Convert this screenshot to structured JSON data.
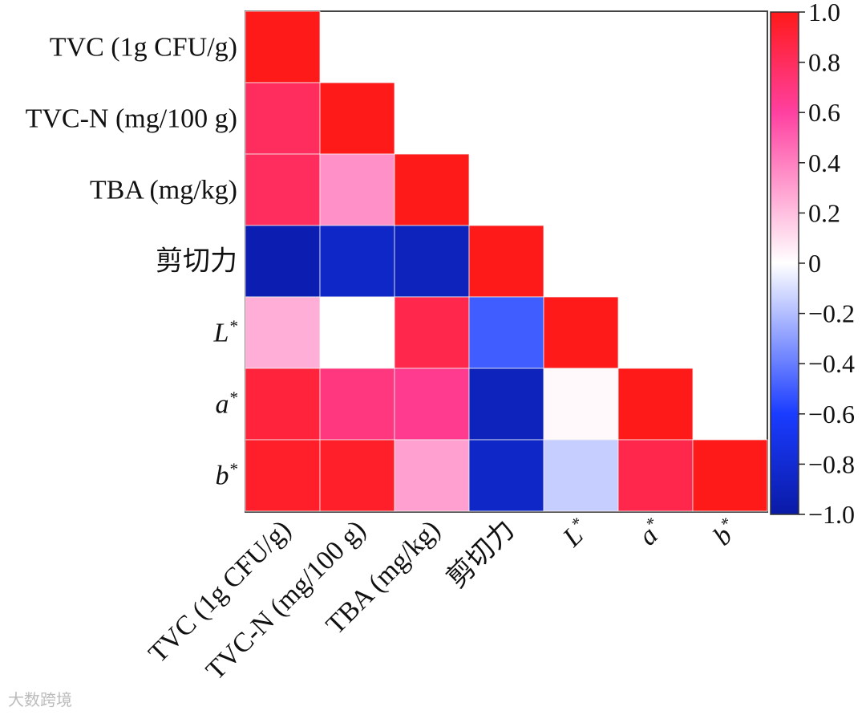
{
  "chart_data": {
    "type": "heatmap",
    "variables": [
      {
        "label": "TVC (1g CFU/g)",
        "base": "TVC (1g CFU/g)",
        "sup": "",
        "italic": false
      },
      {
        "label": "TVC-N (mg/100 g)",
        "base": "TVC-N (mg/100 g)",
        "sup": "",
        "italic": false
      },
      {
        "label": "TBA (mg/kg)",
        "base": "TBA (mg/kg)",
        "sup": "",
        "italic": false
      },
      {
        "label": "剪切力",
        "base": "剪切力",
        "sup": "",
        "italic": false
      },
      {
        "label": "L*",
        "base": "L",
        "sup": "*",
        "italic": true
      },
      {
        "label": "a*",
        "base": "a",
        "sup": "*",
        "italic": true
      },
      {
        "label": "b*",
        "base": "b",
        "sup": "*",
        "italic": true
      }
    ],
    "matrix": [
      [
        1.0
      ],
      [
        0.8,
        1.0
      ],
      [
        0.8,
        0.35,
        1.0
      ],
      [
        -0.95,
        -0.85,
        -0.9,
        1.0
      ],
      [
        0.25,
        0.0,
        0.85,
        -0.5,
        1.0
      ],
      [
        0.9,
        0.7,
        0.65,
        -0.9,
        0.02,
        1.0
      ],
      [
        0.95,
        0.95,
        0.3,
        -0.85,
        -0.15,
        0.85,
        1.0
      ]
    ],
    "triangle": "lower",
    "colorbar": {
      "range": [
        -1.0,
        1.0
      ],
      "ticks": [
        "1.0",
        "0.8",
        "0.6",
        "0.4",
        "0.2",
        "0",
        "−0.2",
        "−0.4",
        "−0.6",
        "−0.8",
        "−1.0"
      ],
      "colors": {
        "negative": "#0a1aa6",
        "mid_negative": "#1a3cff",
        "zero": "#ffffff",
        "mid_positive": "#ff40a0",
        "positive": "#ff1a1a"
      }
    },
    "legend": "right",
    "grid": false
  },
  "watermark": "大数跨境"
}
